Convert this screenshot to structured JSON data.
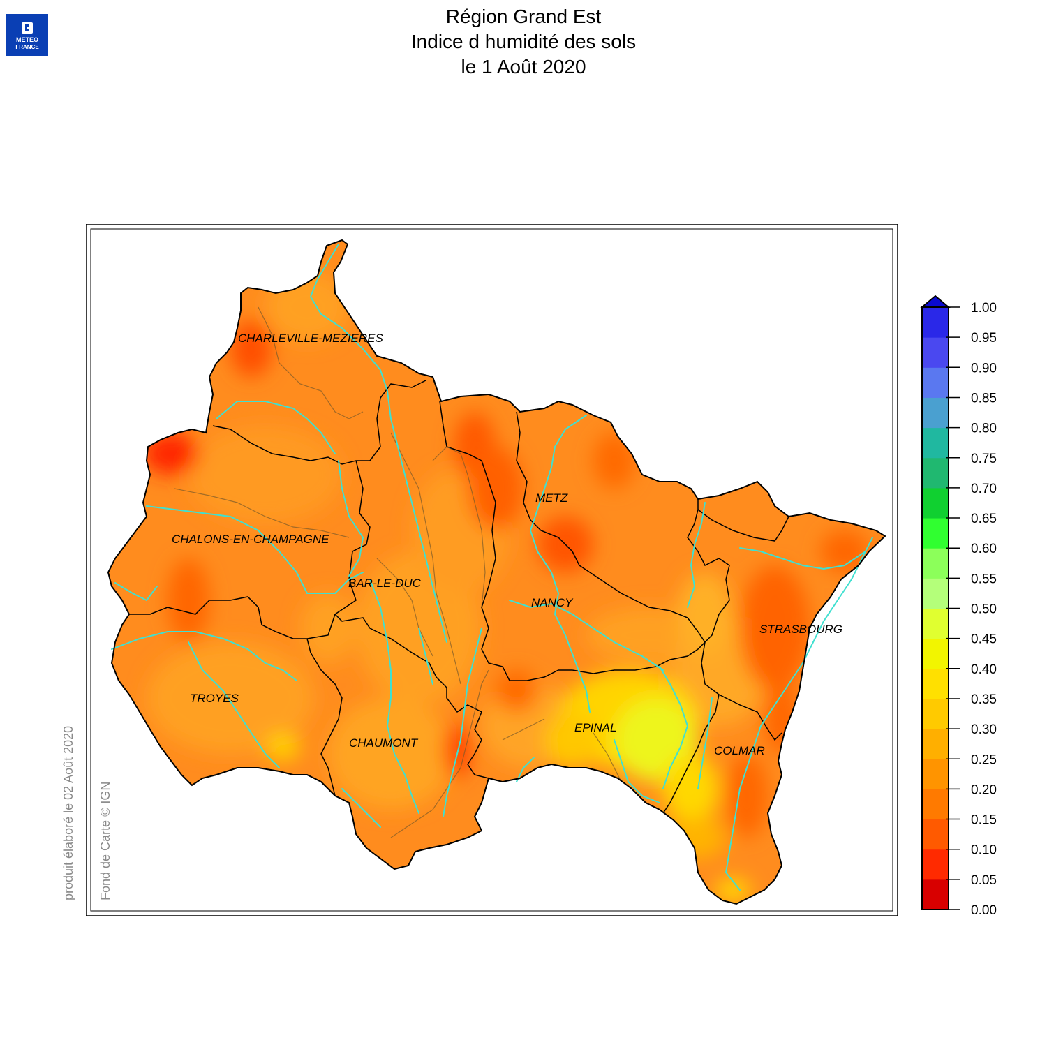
{
  "logo": {
    "name": "meteo-france-logo",
    "line1": "METEO",
    "line2": "FRANCE"
  },
  "title": {
    "line1": "Région Grand Est",
    "line2": "Indice d humidité des sols",
    "line3": "le 1 Août 2020"
  },
  "credits": {
    "produced": "produit élaboré le 02 Août 2020",
    "basemap": "Fond de Carte © IGN"
  },
  "cities": [
    {
      "name": "CHARLEVILLE-MEZIERES"
    },
    {
      "name": "METZ"
    },
    {
      "name": "CHALONS-EN-CHAMPAGNE"
    },
    {
      "name": "BAR-LE-DUC"
    },
    {
      "name": "NANCY"
    },
    {
      "name": "STRASBOURG"
    },
    {
      "name": "TROYES"
    },
    {
      "name": "EPINAL"
    },
    {
      "name": "CHAUMONT"
    },
    {
      "name": "COLMAR"
    }
  ],
  "legend": {
    "ticks": [
      "0.00",
      "0.05",
      "0.10",
      "0.15",
      "0.20",
      "0.25",
      "0.30",
      "0.35",
      "0.40",
      "0.45",
      "0.50",
      "0.55",
      "0.60",
      "0.65",
      "0.70",
      "0.75",
      "0.80",
      "0.85",
      "0.90",
      "0.95",
      "1.00"
    ],
    "colors": [
      "#d80000",
      "#ff2a00",
      "#ff5a00",
      "#ff7a00",
      "#ff9400",
      "#ffaf00",
      "#ffca00",
      "#ffe000",
      "#f2f500",
      "#e0ff30",
      "#b4ff7a",
      "#8cff5a",
      "#30ff30",
      "#10d030",
      "#20b870",
      "#20b8a0",
      "#4aa0d0",
      "#5a78f0",
      "#4a48f0",
      "#2a28e8"
    ],
    "overflow_color": "#0a0ad0"
  },
  "colors": {
    "land_base": "#ff8c1e",
    "river": "#40e0d0",
    "border": "#000000",
    "logo_blue": "#0a3fb4"
  }
}
